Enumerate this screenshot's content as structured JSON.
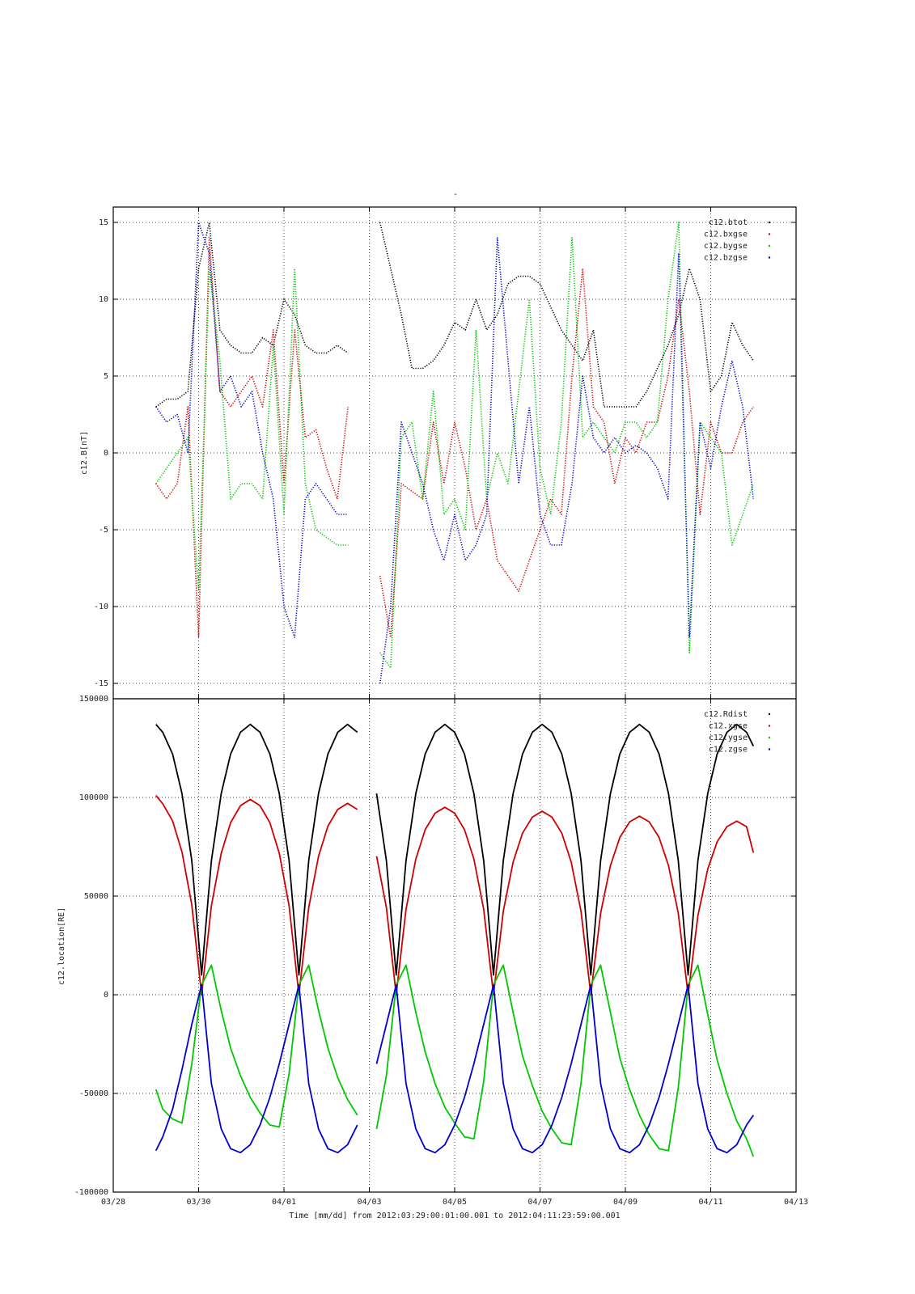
{
  "chart_data": [
    {
      "type": "scatter",
      "title": "-",
      "ylabel": "c12.B[nT]",
      "legend": "upper right",
      "grid": true,
      "xlim": [
        0,
        16
      ],
      "xticks": [
        0,
        2,
        4,
        6,
        8,
        10,
        12,
        14,
        16
      ],
      "ylim": [
        -16,
        16
      ],
      "yticks": [
        -15,
        -10,
        -5,
        0,
        5,
        10,
        15
      ],
      "x": [
        1,
        1.25,
        1.5,
        1.75,
        2,
        2.25,
        2.5,
        2.75,
        3,
        3.25,
        3.5,
        3.75,
        4,
        4.25,
        4.5,
        4.75,
        5,
        5.25,
        5.5,
        5.75,
        6,
        6.25,
        6.5,
        6.75,
        7,
        7.25,
        7.5,
        7.75,
        8,
        8.25,
        8.5,
        8.75,
        9,
        9.25,
        9.5,
        9.75,
        10,
        10.25,
        10.5,
        10.75,
        11,
        11.25,
        11.5,
        11.75,
        12,
        12.25,
        12.5,
        12.75,
        13,
        13.25,
        13.5,
        13.75,
        14,
        14.25,
        14.5,
        14.75,
        15
      ],
      "series": [
        {
          "name": "c12.btot",
          "color": "#000000",
          "values": [
            3,
            3.5,
            3.5,
            4,
            12,
            15,
            8,
            7,
            6.5,
            6.5,
            7.5,
            7,
            10,
            9,
            7,
            6.5,
            6.5,
            7,
            6.5,
            null,
            null,
            15,
            12,
            9,
            5.5,
            5.5,
            6,
            7,
            8.5,
            8,
            10,
            8,
            9,
            11,
            11.5,
            11.5,
            11,
            9.5,
            8,
            7,
            6,
            8,
            3,
            3,
            3,
            3,
            4,
            5.5,
            7,
            9,
            12,
            10,
            4,
            5,
            8.5,
            7,
            6
          ]
        },
        {
          "name": "c12.bxgse",
          "color": "#d00000",
          "values": [
            -2,
            -3,
            -2,
            3,
            -12,
            14,
            4,
            3,
            4,
            5,
            3,
            8,
            -2,
            8,
            1,
            1.5,
            -1,
            -3,
            3,
            null,
            null,
            -8,
            -12,
            -2,
            -2.5,
            -3,
            2,
            -2,
            2,
            -1,
            -5,
            -3,
            -7,
            -8,
            -9,
            -7,
            -5,
            -3,
            -4,
            5,
            12,
            3,
            2,
            -2,
            1,
            0,
            2,
            2,
            5,
            10,
            4,
            -4,
            2,
            0,
            0,
            2,
            3
          ]
        },
        {
          "name": "c12.bygse",
          "color": "#00c800",
          "values": [
            -2,
            -1,
            0,
            1,
            -9,
            12,
            6,
            -3,
            -2,
            -2,
            -3,
            7,
            -4,
            12,
            -2,
            -5,
            -5.5,
            -6,
            -6,
            null,
            null,
            -13,
            -14,
            1,
            2,
            -3,
            4,
            -4,
            -3,
            -5,
            8,
            -3,
            0,
            -2,
            4,
            10,
            -1,
            -4,
            2,
            14,
            1,
            2,
            1,
            0,
            2,
            2,
            1,
            2,
            10,
            15,
            -13,
            2,
            1,
            0,
            -6,
            -4,
            -2
          ]
        },
        {
          "name": "c12.bzgse",
          "color": "#0000d0",
          "values": [
            3,
            2,
            2.5,
            0,
            15,
            13,
            4,
            5,
            3,
            4,
            0,
            -3,
            -10,
            -12,
            -3,
            -2,
            -3,
            -4,
            -4,
            null,
            null,
            -15,
            -10,
            2,
            0,
            -2,
            -5,
            -7,
            -4,
            -7,
            -6,
            -4,
            14,
            6,
            -2,
            3,
            -4,
            -6,
            -6,
            -2,
            5,
            1,
            0,
            1,
            0,
            0.5,
            0,
            -1,
            -3,
            13,
            -12,
            2,
            -1,
            3,
            6,
            3,
            -3
          ]
        }
      ]
    },
    {
      "type": "line",
      "ylabel": "c12.location[RE]",
      "xlabel": "Time [mm/dd]  from 2012:03:29:00:01:00.001  to  2012:04:11:23:59:00.001",
      "legend": "upper right",
      "grid": true,
      "xlim": [
        0,
        16
      ],
      "xticks": [
        {
          "value": 0,
          "label": "03/28"
        },
        {
          "value": 2,
          "label": "03/30"
        },
        {
          "value": 4,
          "label": "04/01"
        },
        {
          "value": 6,
          "label": "04/03"
        },
        {
          "value": 8,
          "label": "04/05"
        },
        {
          "value": 10,
          "label": "04/07"
        },
        {
          "value": 12,
          "label": "04/09"
        },
        {
          "value": 14,
          "label": "04/11"
        },
        {
          "value": 16,
          "label": "04/13"
        }
      ],
      "ylim": [
        -100000,
        150000
      ],
      "yticks": [
        -100000,
        -50000,
        0,
        50000,
        100000,
        150000
      ],
      "x": [
        1.0,
        1.16,
        1.39,
        1.61,
        1.84,
        2.07,
        2.3,
        2.53,
        2.75,
        2.98,
        3.21,
        3.44,
        3.67,
        3.89,
        4.12,
        4.35,
        4.58,
        4.81,
        5.03,
        5.26,
        5.49,
        5.72,
        5.95,
        6.17,
        6.4,
        6.63,
        6.86,
        7.09,
        7.31,
        7.54,
        7.77,
        8.0,
        8.23,
        8.45,
        8.68,
        8.91,
        9.14,
        9.37,
        9.59,
        9.82,
        10.05,
        10.28,
        10.51,
        10.73,
        10.96,
        11.19,
        11.42,
        11.65,
        11.87,
        12.1,
        12.33,
        12.56,
        12.79,
        13.01,
        13.24,
        13.47,
        13.7,
        13.93,
        14.15,
        14.38,
        14.61,
        14.84,
        15.0
      ],
      "series": [
        {
          "name": "c12.Rdist",
          "color": "#000000",
          "values": [
            137000,
            133000,
            122000,
            102000,
            68000,
            10000,
            68000,
            102000,
            122000,
            133000,
            137000,
            133000,
            122000,
            102000,
            68000,
            10000,
            68000,
            102000,
            122000,
            133000,
            137000,
            133000,
            null,
            102000,
            68000,
            10000,
            68000,
            102000,
            122000,
            133000,
            137000,
            133000,
            122000,
            102000,
            68000,
            10000,
            68000,
            102000,
            122000,
            133000,
            137000,
            133000,
            122000,
            102000,
            68000,
            10000,
            68000,
            102000,
            122000,
            133000,
            137000,
            133000,
            122000,
            102000,
            68000,
            10000,
            68000,
            102000,
            122000,
            133000,
            137000,
            133000,
            126000
          ]
        },
        {
          "name": "c12.xgse",
          "color": "#d00000",
          "values": [
            101000,
            96800,
            88100,
            72400,
            45600,
            0,
            45100,
            71700,
            87200,
            95800,
            99000,
            95800,
            87200,
            71700,
            45100,
            0,
            44200,
            70200,
            85500,
            93900,
            97000,
            93900,
            null,
            70200,
            44200,
            0,
            43300,
            68800,
            83700,
            92000,
            95000,
            92000,
            83700,
            68800,
            43300,
            0,
            42400,
            67300,
            81900,
            90000,
            93000,
            90000,
            81900,
            67300,
            42400,
            0,
            41300,
            65500,
            79700,
            87600,
            90500,
            87600,
            79700,
            65500,
            41300,
            0,
            40100,
            63700,
            77500,
            85200,
            88000,
            85200,
            72000
          ]
        },
        {
          "name": "c12.ygse",
          "color": "#00c800",
          "values": [
            -48000,
            -58000,
            -63000,
            -65000,
            -35000,
            5000,
            15000,
            -8000,
            -27000,
            -41000,
            -52000,
            -60000,
            -66000,
            -67000,
            -40000,
            5000,
            15000,
            -8000,
            -27000,
            -42000,
            -53000,
            -61000,
            null,
            -68000,
            -41000,
            5000,
            15000,
            -9000,
            -29000,
            -45000,
            -57000,
            -65000,
            -72000,
            -73000,
            -44000,
            5000,
            15000,
            -9000,
            -31000,
            -46000,
            -59000,
            -68000,
            -75000,
            -76000,
            -45000,
            5000,
            15000,
            -9000,
            -32000,
            -48000,
            -61000,
            -71000,
            -78000,
            -79000,
            -47000,
            5000,
            15000,
            -10000,
            -33000,
            -50000,
            -64000,
            -73000,
            -82000
          ]
        },
        {
          "name": "c12.zgse",
          "color": "#0000d0",
          "values": [
            -79000,
            -72000,
            -58000,
            -38000,
            -15000,
            5000,
            -45000,
            -68000,
            -78000,
            -80000,
            -76000,
            -66000,
            -52000,
            -35000,
            -15000,
            5000,
            -45000,
            -68000,
            -78000,
            -80000,
            -76000,
            -66000,
            null,
            -35000,
            -15000,
            5000,
            -45000,
            -68000,
            -78000,
            -80000,
            -76000,
            -66000,
            -52000,
            -35000,
            -15000,
            5000,
            -45000,
            -68000,
            -78000,
            -80000,
            -76000,
            -66000,
            -52000,
            -35000,
            -15000,
            5000,
            -45000,
            -68000,
            -78000,
            -80000,
            -76000,
            -66000,
            -52000,
            -35000,
            -15000,
            5000,
            -45000,
            -68000,
            -78000,
            -80000,
            -76000,
            -66000,
            -61000
          ]
        }
      ]
    }
  ]
}
